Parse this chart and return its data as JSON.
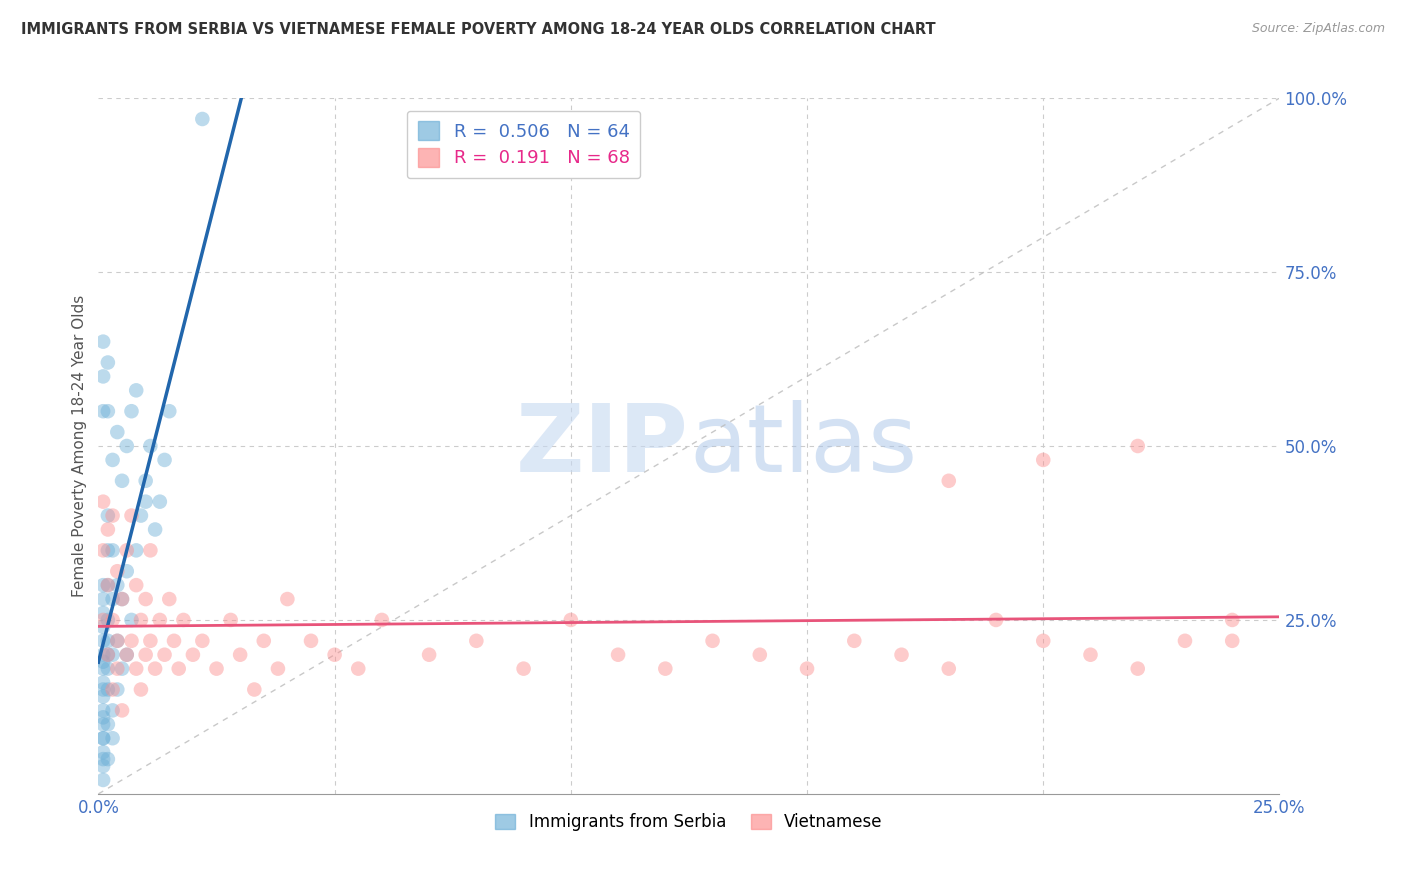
{
  "title": "IMMIGRANTS FROM SERBIA VS VIETNAMESE FEMALE POVERTY AMONG 18-24 YEAR OLDS CORRELATION CHART",
  "source": "Source: ZipAtlas.com",
  "ylabel": "Female Poverty Among 18-24 Year Olds",
  "xlim": [
    0,
    0.25
  ],
  "ylim": [
    0,
    1.0
  ],
  "xtick_positions": [
    0.0,
    0.25
  ],
  "xtick_labels": [
    "0.0%",
    "25.0%"
  ],
  "ytick_positions": [
    0.25,
    0.5,
    0.75,
    1.0
  ],
  "ytick_labels": [
    "25.0%",
    "50.0%",
    "75.0%",
    "100.0%"
  ],
  "serbia_color": "#6baed6",
  "vietnamese_color": "#fc8d8d",
  "serbia_R": 0.506,
  "serbia_N": 64,
  "vietnamese_R": 0.191,
  "vietnamese_N": 68,
  "watermark_zip": "ZIP",
  "watermark_atlas": "atlas",
  "legend_label1": "Immigrants from Serbia",
  "legend_label2": "Vietnamese",
  "serbia_line_color": "#2166ac",
  "vietnamese_line_color": "#e8547a",
  "diag_color": "#bbbbbb",
  "serbia_x": [
    0.001,
    0.001,
    0.001,
    0.001,
    0.001,
    0.001,
    0.001,
    0.001,
    0.001,
    0.001,
    0.001,
    0.001,
    0.001,
    0.001,
    0.001,
    0.001,
    0.001,
    0.001,
    0.001,
    0.001,
    0.002,
    0.002,
    0.002,
    0.002,
    0.002,
    0.002,
    0.002,
    0.002,
    0.002,
    0.002,
    0.003,
    0.003,
    0.003,
    0.003,
    0.003,
    0.004,
    0.004,
    0.004,
    0.005,
    0.005,
    0.006,
    0.006,
    0.007,
    0.008,
    0.009,
    0.01,
    0.011,
    0.012,
    0.013,
    0.014,
    0.001,
    0.001,
    0.001,
    0.002,
    0.002,
    0.003,
    0.004,
    0.005,
    0.006,
    0.007,
    0.008,
    0.01,
    0.015,
    0.022
  ],
  "serbia_y": [
    0.02,
    0.04,
    0.06,
    0.08,
    0.1,
    0.12,
    0.14,
    0.16,
    0.18,
    0.2,
    0.22,
    0.24,
    0.26,
    0.28,
    0.3,
    0.05,
    0.08,
    0.11,
    0.15,
    0.19,
    0.05,
    0.1,
    0.15,
    0.2,
    0.25,
    0.3,
    0.35,
    0.4,
    0.22,
    0.18,
    0.08,
    0.12,
    0.2,
    0.28,
    0.35,
    0.15,
    0.22,
    0.3,
    0.18,
    0.28,
    0.2,
    0.32,
    0.25,
    0.35,
    0.4,
    0.45,
    0.5,
    0.38,
    0.42,
    0.48,
    0.55,
    0.6,
    0.65,
    0.55,
    0.62,
    0.48,
    0.52,
    0.45,
    0.5,
    0.55,
    0.58,
    0.42,
    0.55,
    0.97
  ],
  "viet_x": [
    0.001,
    0.001,
    0.001,
    0.002,
    0.002,
    0.002,
    0.003,
    0.003,
    0.003,
    0.004,
    0.004,
    0.004,
    0.005,
    0.005,
    0.006,
    0.006,
    0.007,
    0.007,
    0.008,
    0.008,
    0.009,
    0.009,
    0.01,
    0.01,
    0.011,
    0.011,
    0.012,
    0.013,
    0.014,
    0.015,
    0.016,
    0.017,
    0.018,
    0.02,
    0.022,
    0.025,
    0.028,
    0.03,
    0.033,
    0.035,
    0.038,
    0.04,
    0.045,
    0.05,
    0.055,
    0.06,
    0.07,
    0.08,
    0.09,
    0.1,
    0.11,
    0.12,
    0.13,
    0.14,
    0.15,
    0.16,
    0.17,
    0.18,
    0.19,
    0.2,
    0.21,
    0.22,
    0.23,
    0.24,
    0.2,
    0.18,
    0.22,
    0.24
  ],
  "viet_y": [
    0.25,
    0.35,
    0.42,
    0.3,
    0.2,
    0.38,
    0.25,
    0.15,
    0.4,
    0.22,
    0.18,
    0.32,
    0.28,
    0.12,
    0.35,
    0.2,
    0.4,
    0.22,
    0.3,
    0.18,
    0.25,
    0.15,
    0.28,
    0.2,
    0.35,
    0.22,
    0.18,
    0.25,
    0.2,
    0.28,
    0.22,
    0.18,
    0.25,
    0.2,
    0.22,
    0.18,
    0.25,
    0.2,
    0.15,
    0.22,
    0.18,
    0.28,
    0.22,
    0.2,
    0.18,
    0.25,
    0.2,
    0.22,
    0.18,
    0.25,
    0.2,
    0.18,
    0.22,
    0.2,
    0.18,
    0.22,
    0.2,
    0.18,
    0.25,
    0.22,
    0.2,
    0.18,
    0.22,
    0.25,
    0.48,
    0.45,
    0.5,
    0.22
  ]
}
